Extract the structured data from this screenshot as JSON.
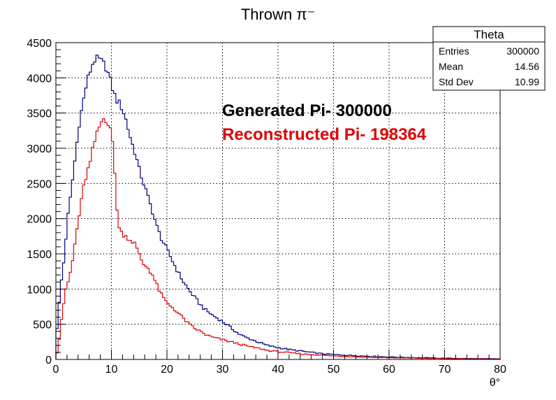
{
  "colors": {
    "generated": "#000080",
    "reconstructed": "#e00000",
    "axes": "#000000"
  },
  "chart_data": {
    "type": "histogram",
    "title": "Thrown π⁻",
    "xlabel": "θ°",
    "ylabel": "",
    "xlim": [
      0,
      80
    ],
    "ylim": [
      0,
      4500
    ],
    "bin_width": 0.4,
    "grid": true,
    "x_ticks": [
      "0",
      "10",
      "20",
      "30",
      "40",
      "50",
      "60",
      "70",
      "80"
    ],
    "y_ticks": [
      "0",
      "500",
      "1000",
      "1500",
      "2000",
      "2500",
      "3000",
      "3500",
      "4000",
      "4500"
    ],
    "series": [
      {
        "name": "Generated Pi- 300000",
        "color": "#000080",
        "anchors": [
          [
            0,
            300
          ],
          [
            0.4,
            600
          ],
          [
            0.8,
            1000
          ],
          [
            1.2,
            1250
          ],
          [
            1.6,
            1500
          ],
          [
            2,
            1950
          ],
          [
            2.4,
            2150
          ],
          [
            3,
            2550
          ],
          [
            3.6,
            2950
          ],
          [
            4.2,
            3350
          ],
          [
            5,
            3700
          ],
          [
            5.6,
            3950
          ],
          [
            6.2,
            4100
          ],
          [
            6.8,
            4250
          ],
          [
            7.6,
            4270
          ],
          [
            8.4,
            4220
          ],
          [
            9,
            4150
          ],
          [
            9.6,
            4020
          ],
          [
            10.2,
            3850
          ],
          [
            10.8,
            3700
          ],
          [
            11.6,
            3620
          ],
          [
            12.4,
            3470
          ],
          [
            13,
            3280
          ],
          [
            13.6,
            3100
          ],
          [
            14.2,
            2950
          ],
          [
            15,
            2700
          ],
          [
            15.8,
            2500
          ],
          [
            16.6,
            2300
          ],
          [
            17.4,
            2100
          ],
          [
            18.2,
            1880
          ],
          [
            19,
            1720
          ],
          [
            20,
            1560
          ],
          [
            21,
            1400
          ],
          [
            22,
            1240
          ],
          [
            23,
            1100
          ],
          [
            24,
            980
          ],
          [
            25,
            880
          ],
          [
            26,
            780
          ],
          [
            27,
            700
          ],
          [
            28,
            640
          ],
          [
            29,
            590
          ],
          [
            30,
            540
          ],
          [
            31,
            480
          ],
          [
            32,
            420
          ],
          [
            33,
            360
          ],
          [
            34,
            320
          ],
          [
            35,
            290
          ],
          [
            36,
            260
          ],
          [
            37,
            230
          ],
          [
            38,
            200
          ],
          [
            40,
            170
          ],
          [
            42,
            140
          ],
          [
            44,
            120
          ],
          [
            46,
            100
          ],
          [
            48,
            80
          ],
          [
            50,
            70
          ],
          [
            55,
            50
          ],
          [
            60,
            35
          ],
          [
            65,
            25
          ],
          [
            70,
            18
          ],
          [
            75,
            12
          ],
          [
            80,
            8
          ]
        ]
      },
      {
        "name": "Reconstructed Pi- 198364",
        "color": "#e00000",
        "anchors": [
          [
            0,
            50
          ],
          [
            0.4,
            150
          ],
          [
            0.8,
            450
          ],
          [
            1.2,
            700
          ],
          [
            1.6,
            900
          ],
          [
            2,
            1050
          ],
          [
            2.4,
            1150
          ],
          [
            3,
            1400
          ],
          [
            3.6,
            1750
          ],
          [
            4.2,
            2050
          ],
          [
            5,
            2450
          ],
          [
            5.6,
            2650
          ],
          [
            6.2,
            2800
          ],
          [
            6.8,
            3050
          ],
          [
            7.4,
            3200
          ],
          [
            8,
            3350
          ],
          [
            8.6,
            3420
          ],
          [
            9.2,
            3400
          ],
          [
            9.8,
            3300
          ],
          [
            10.3,
            3000
          ],
          [
            10.8,
            2400
          ],
          [
            11.2,
            1900
          ],
          [
            11.8,
            1800
          ],
          [
            12.6,
            1750
          ],
          [
            13.4,
            1700
          ],
          [
            14.2,
            1650
          ],
          [
            15,
            1480
          ],
          [
            15.8,
            1350
          ],
          [
            16.6,
            1300
          ],
          [
            17.4,
            1200
          ],
          [
            18.2,
            1050
          ],
          [
            19,
            920
          ],
          [
            20,
            800
          ],
          [
            21,
            740
          ],
          [
            22,
            660
          ],
          [
            23,
            580
          ],
          [
            24,
            500
          ],
          [
            25,
            440
          ],
          [
            26,
            400
          ],
          [
            27,
            350
          ],
          [
            28,
            320
          ],
          [
            29,
            300
          ],
          [
            30,
            280
          ],
          [
            31,
            260
          ],
          [
            32,
            240
          ],
          [
            33,
            220
          ],
          [
            34,
            200
          ],
          [
            35,
            180
          ],
          [
            36,
            165
          ],
          [
            37,
            150
          ],
          [
            38,
            130
          ],
          [
            40,
            110
          ],
          [
            42,
            95
          ],
          [
            44,
            80
          ],
          [
            46,
            70
          ],
          [
            48,
            60
          ],
          [
            50,
            50
          ],
          [
            55,
            35
          ],
          [
            60,
            25
          ],
          [
            65,
            18
          ],
          [
            70,
            12
          ],
          [
            75,
            8
          ],
          [
            80,
            5
          ]
        ]
      }
    ],
    "annotations": [
      {
        "text": "Generated Pi- 300000",
        "color": "#000000"
      },
      {
        "text": "Reconstructed Pi- 198364",
        "color": "#e00000"
      }
    ],
    "stats_box": {
      "title": "Theta",
      "rows": [
        {
          "label": "Entries",
          "value": "300000"
        },
        {
          "label": "Mean",
          "value": "14.56"
        },
        {
          "label": "Std Dev",
          "value": "10.99"
        }
      ],
      "placement": "top-right"
    }
  }
}
